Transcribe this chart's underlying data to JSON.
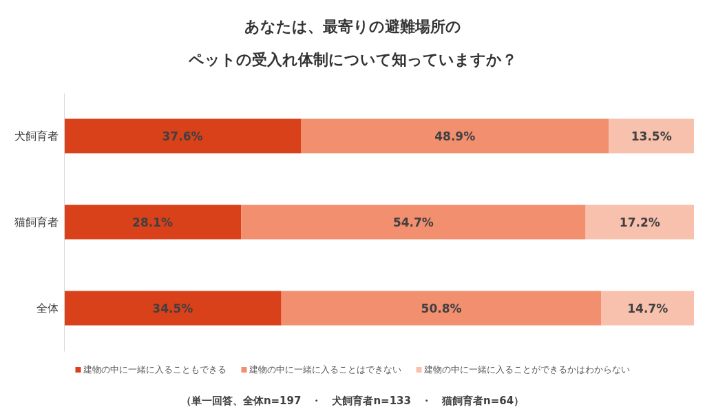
{
  "chart_data": {
    "type": "bar",
    "orientation": "horizontal",
    "stacked": true,
    "title": "あなたは、最寄りの避難場所の",
    "subtitle": "ペットの受入れ体制について知っていますか？",
    "categories": [
      "犬飼育者",
      "猫飼育者",
      "全体"
    ],
    "series": [
      {
        "name": "建物の中に一緒に入ることもできる",
        "color": "#d9411a",
        "values": [
          37.6,
          28.1,
          34.5
        ],
        "value_labels": [
          "37.6%",
          "28.1%",
          "34.5%"
        ]
      },
      {
        "name": "建物の中に一緒に入ることはできない",
        "color": "#f28f6f",
        "values": [
          48.9,
          54.7,
          50.8
        ],
        "value_labels": [
          "48.9%",
          "54.7%",
          "50.8%"
        ]
      },
      {
        "name": "建物の中に一緒に入ることができるかはわからない",
        "color": "#f8c1ae",
        "values": [
          13.5,
          17.2,
          14.7
        ],
        "value_labels": [
          "13.5%",
          "17.2%",
          "14.7%"
        ]
      }
    ],
    "tick_labels": "y",
    "legend": "bottom",
    "annotations": [
      "（単一回答、全体n=197　・　犬飼育者n=133　・　猫飼育者n=64）"
    ]
  }
}
